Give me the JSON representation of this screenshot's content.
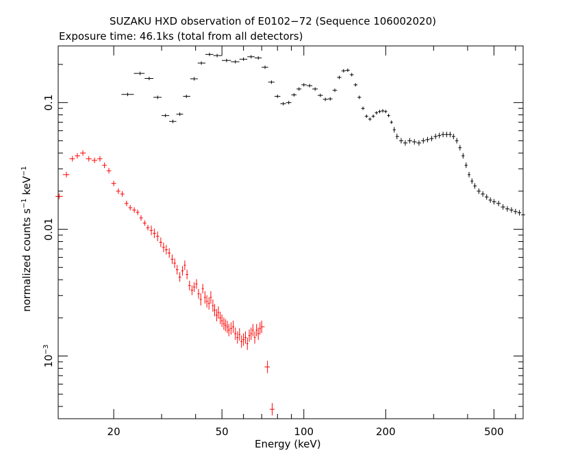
{
  "chart_data": {
    "type": "scatter",
    "title": "SUZAKU HXD observation of E0102−72 (Sequence 106002020)",
    "subtitle": "Exposure time: 46.1ks (total from all detectors)",
    "xlabel": "Energy (keV)",
    "ylabel_text": "normalized counts s",
    "ylabel_exp1": "−1",
    "ylabel_mid": " keV",
    "ylabel_exp2": "−1",
    "xscale": "log",
    "yscale": "log",
    "xlim": [
      12.5,
      640
    ],
    "ylim": [
      0.00032,
      0.28
    ],
    "xticks": [
      {
        "value": 20,
        "label": "20"
      },
      {
        "value": 50,
        "label": "50"
      },
      {
        "value": 100,
        "label": "100"
      },
      {
        "value": 200,
        "label": "200"
      },
      {
        "value": 500,
        "label": "500"
      }
    ],
    "yticks": [
      {
        "value": 0.1,
        "label": "0.1"
      },
      {
        "value": 0.01,
        "label": "0.01"
      }
    ],
    "ytick_exp_label": {
      "value": 0.001,
      "base": "10",
      "exp": "−3"
    },
    "series": [
      {
        "color": "#000000",
        "points": [
          [
            22.5,
            0.116
          ],
          [
            25,
            0.17
          ],
          [
            27,
            0.155
          ],
          [
            29,
            0.11
          ],
          [
            31,
            0.079
          ],
          [
            33,
            0.071
          ],
          [
            35,
            0.081
          ],
          [
            37,
            0.112
          ],
          [
            39.5,
            0.154
          ],
          [
            42,
            0.205
          ],
          [
            45,
            0.24
          ],
          [
            48,
            0.235
          ],
          [
            52,
            0.215
          ],
          [
            56,
            0.21
          ],
          [
            60,
            0.22
          ],
          [
            64,
            0.23
          ],
          [
            68,
            0.225
          ],
          [
            72,
            0.19
          ],
          [
            76,
            0.145
          ],
          [
            80,
            0.112
          ],
          [
            84,
            0.098
          ],
          [
            88,
            0.1
          ],
          [
            92,
            0.115
          ],
          [
            96,
            0.128
          ],
          [
            100,
            0.138
          ],
          [
            105,
            0.136
          ],
          [
            110,
            0.128
          ],
          [
            115,
            0.114
          ],
          [
            120,
            0.106
          ],
          [
            125,
            0.107
          ],
          [
            130,
            0.125
          ],
          [
            135,
            0.158
          ],
          [
            140,
            0.178
          ],
          [
            145,
            0.18
          ],
          [
            150,
            0.166
          ],
          [
            155,
            0.138
          ],
          [
            160,
            0.11
          ],
          [
            165,
            0.09
          ],
          [
            170,
            0.078
          ],
          [
            175,
            0.074
          ],
          [
            180,
            0.078
          ],
          [
            185,
            0.083
          ],
          [
            190,
            0.085
          ],
          [
            195,
            0.086
          ],
          [
            200,
            0.085
          ],
          [
            205,
            0.079
          ],
          [
            210,
            0.07
          ],
          [
            215,
            0.061
          ],
          [
            220,
            0.054
          ],
          [
            228,
            0.05
          ],
          [
            236,
            0.048
          ],
          [
            245,
            0.05
          ],
          [
            255,
            0.049
          ],
          [
            265,
            0.048
          ],
          [
            275,
            0.05
          ],
          [
            285,
            0.051
          ],
          [
            295,
            0.052
          ],
          [
            305,
            0.054
          ],
          [
            315,
            0.055
          ],
          [
            325,
            0.056
          ],
          [
            335,
            0.056
          ],
          [
            345,
            0.056
          ],
          [
            355,
            0.054
          ],
          [
            365,
            0.05
          ],
          [
            375,
            0.044
          ],
          [
            385,
            0.038
          ],
          [
            395,
            0.032
          ],
          [
            405,
            0.027
          ],
          [
            415,
            0.024
          ],
          [
            425,
            0.022
          ],
          [
            440,
            0.02
          ],
          [
            455,
            0.019
          ],
          [
            470,
            0.018
          ],
          [
            485,
            0.017
          ],
          [
            500,
            0.0165
          ],
          [
            520,
            0.016
          ],
          [
            540,
            0.015
          ],
          [
            560,
            0.0145
          ],
          [
            580,
            0.0142
          ],
          [
            600,
            0.0138
          ],
          [
            620,
            0.0135
          ],
          [
            640,
            0.013
          ]
        ]
      },
      {
        "color": "#ff0000",
        "points": [
          [
            12.6,
            0.0182
          ],
          [
            13.4,
            0.027
          ],
          [
            14.1,
            0.036
          ],
          [
            14.7,
            0.038
          ],
          [
            15.4,
            0.04
          ],
          [
            16.2,
            0.036
          ],
          [
            17.0,
            0.035
          ],
          [
            17.8,
            0.036
          ],
          [
            18.5,
            0.032
          ],
          [
            19.2,
            0.029
          ],
          [
            20.0,
            0.023
          ],
          [
            20.8,
            0.02
          ],
          [
            21.5,
            0.019
          ],
          [
            22.3,
            0.016
          ],
          [
            23.0,
            0.0148
          ],
          [
            23.8,
            0.0142
          ],
          [
            24.5,
            0.0136
          ],
          [
            25.2,
            0.0123
          ],
          [
            26.0,
            0.0112
          ],
          [
            26.7,
            0.0103
          ],
          [
            27.5,
            0.0098
          ],
          [
            28.2,
            0.0093
          ],
          [
            29.0,
            0.0088
          ],
          [
            29.8,
            0.0079
          ],
          [
            30.5,
            0.0072
          ],
          [
            31.2,
            0.0069
          ],
          [
            32.0,
            0.0065
          ],
          [
            32.8,
            0.0058
          ],
          [
            33.5,
            0.0054
          ],
          [
            34.2,
            0.0048
          ],
          [
            35.0,
            0.0042
          ],
          [
            35.8,
            0.0047
          ],
          [
            36.5,
            0.0052
          ],
          [
            37.2,
            0.0044
          ],
          [
            38.0,
            0.0036
          ],
          [
            38.8,
            0.0033
          ],
          [
            39.5,
            0.0035
          ],
          [
            40.3,
            0.0037
          ],
          [
            41.0,
            0.0031
          ],
          [
            41.8,
            0.0028
          ],
          [
            42.5,
            0.0034
          ],
          [
            43.3,
            0.0029
          ],
          [
            44.0,
            0.0027
          ],
          [
            44.8,
            0.0026
          ],
          [
            45.5,
            0.0029
          ],
          [
            46.3,
            0.0025
          ],
          [
            47.0,
            0.0023
          ],
          [
            47.8,
            0.0021
          ],
          [
            48.5,
            0.0022
          ],
          [
            49.3,
            0.002
          ],
          [
            50.0,
            0.0019
          ],
          [
            50.8,
            0.0018
          ],
          [
            51.5,
            0.00175
          ],
          [
            52.3,
            0.0017
          ],
          [
            53.0,
            0.0016
          ],
          [
            54.0,
            0.00165
          ],
          [
            55.0,
            0.0017
          ],
          [
            56.0,
            0.0015
          ],
          [
            57.0,
            0.0014
          ],
          [
            58.0,
            0.00148
          ],
          [
            59.0,
            0.0013
          ],
          [
            60.0,
            0.00135
          ],
          [
            61.0,
            0.0014
          ],
          [
            62.0,
            0.00125
          ],
          [
            63.0,
            0.00145
          ],
          [
            64.0,
            0.0015
          ],
          [
            65.0,
            0.0016
          ],
          [
            66.0,
            0.0014
          ],
          [
            67.0,
            0.0016
          ],
          [
            68.0,
            0.0015
          ],
          [
            69.0,
            0.00165
          ],
          [
            70.0,
            0.0017
          ],
          [
            73.5,
            0.00082
          ],
          [
            76.5,
            0.00038
          ]
        ]
      }
    ]
  }
}
